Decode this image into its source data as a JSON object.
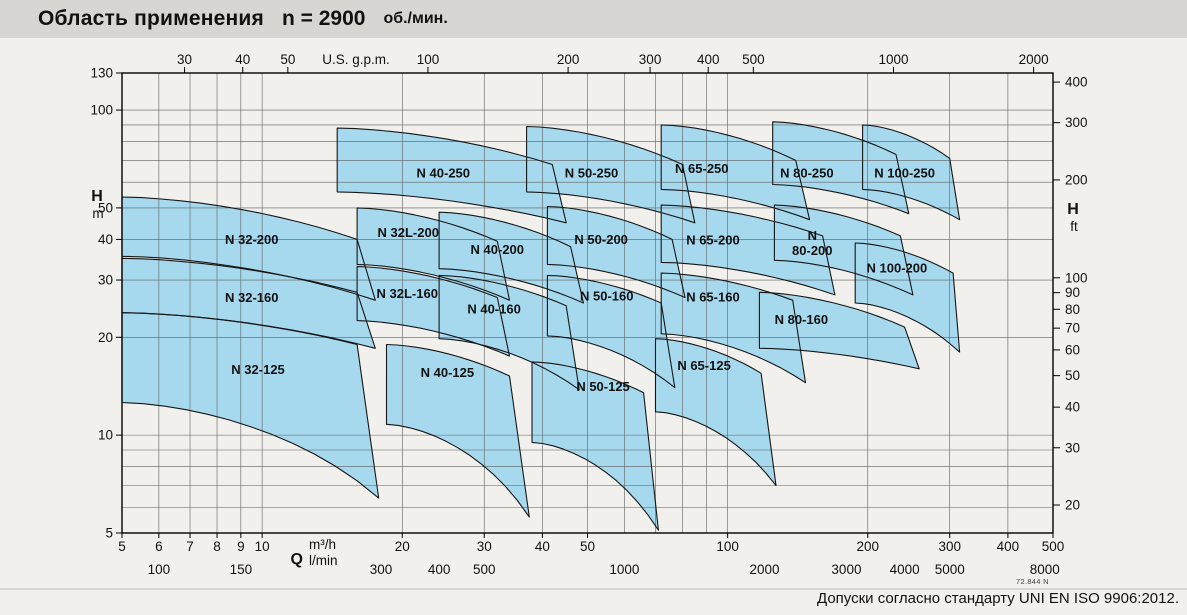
{
  "title": {
    "prefix": "Область применения",
    "n_label": "n = 2900",
    "unit": "об./мин."
  },
  "footer": {
    "note": "Допуски согласно стандарту UNI EN ISO 9906:2012.",
    "doc_code": "72.844 N"
  },
  "chart_data": {
    "type": "area",
    "scale": "log-log",
    "title": "Область применения n = 2900 об./мин.",
    "colors": {
      "region_fill": "#a6d9ee",
      "region_stroke": "#161616",
      "grid": "#5f5f5f",
      "border": "#000000"
    },
    "axes": {
      "top": {
        "title": "U.S. g.p.m.",
        "ticks": [
          30,
          40,
          50,
          100,
          200,
          300,
          400,
          500,
          1000,
          2000
        ]
      },
      "left": {
        "title": "H",
        "unit": "m",
        "range": [
          5,
          130
        ],
        "ticks": [
          130,
          100,
          50,
          40,
          30,
          20,
          10,
          5
        ]
      },
      "right": {
        "title": "H",
        "unit": "ft",
        "ticks": [
          400,
          300,
          200,
          100,
          90,
          80,
          70,
          60,
          50,
          40,
          30,
          20
        ]
      },
      "bottom_m3h": {
        "title": "Q",
        "unit": "m³/h",
        "range": [
          5,
          500
        ],
        "ticks": [
          5,
          6,
          7,
          8,
          9,
          10,
          20,
          30,
          40,
          50,
          100,
          200,
          300,
          400,
          500
        ]
      },
      "bottom_lmin": {
        "unit": "l/min",
        "ticks": [
          100,
          150,
          300,
          400,
          500,
          1000,
          2000,
          3000,
          4000,
          5000,
          8000
        ]
      }
    },
    "grid_x_m3h": [
      6,
      7,
      8,
      9,
      10,
      20,
      30,
      40,
      50,
      60,
      70,
      80,
      90,
      100,
      200,
      300,
      400
    ],
    "grid_y_m": [
      6,
      7,
      8,
      9,
      10,
      20,
      30,
      40,
      50,
      60,
      70,
      80,
      90,
      100
    ],
    "regions": [
      {
        "name": "N 40-250",
        "tl": [
          14.5,
          88
        ],
        "tr": [
          42,
          68
        ],
        "br": [
          45,
          45
        ],
        "bl": [
          14.5,
          56
        ],
        "label_at": [
          24.5,
          64
        ]
      },
      {
        "name": "N 50-250",
        "tl": [
          37,
          89
        ],
        "tr": [
          80,
          68
        ],
        "br": [
          85,
          45
        ],
        "bl": [
          37,
          56
        ],
        "label_at": [
          51,
          64
        ]
      },
      {
        "name": "N 65-250",
        "tl": [
          72,
          90
        ],
        "tr": [
          140,
          70
        ],
        "br": [
          150,
          46
        ],
        "bl": [
          72,
          57
        ],
        "label_at": [
          88,
          66
        ]
      },
      {
        "name": "N 80-250",
        "tl": [
          125,
          92
        ],
        "tr": [
          230,
          73
        ],
        "br": [
          245,
          48
        ],
        "bl": [
          125,
          59
        ],
        "label_at": [
          148,
          64
        ]
      },
      {
        "name": "N 100-250",
        "tl": [
          195,
          90
        ],
        "tr": [
          300,
          71
        ],
        "br": [
          315,
          46
        ],
        "bl": [
          195,
          57
        ],
        "label_at": [
          240,
          64
        ]
      },
      {
        "name": "N 32-200",
        "tl": [
          5,
          54
        ],
        "tr": [
          16,
          40
        ],
        "br": [
          17.5,
          26
        ],
        "bl": [
          5,
          35.5
        ],
        "label_at": [
          9.5,
          40
        ]
      },
      {
        "name": "N 32L-200",
        "tl": [
          16,
          50
        ],
        "tr": [
          32,
          39.5
        ],
        "br": [
          34,
          26
        ],
        "bl": [
          16,
          33.5
        ],
        "label_at": [
          20.6,
          42
        ]
      },
      {
        "name": "N 40-200",
        "tl": [
          24,
          48.5
        ],
        "tr": [
          46,
          38
        ],
        "br": [
          49,
          25.5
        ],
        "bl": [
          24,
          32.5
        ],
        "label_at": [
          32,
          37.3
        ]
      },
      {
        "name": "N 50-200",
        "tl": [
          41,
          50.5
        ],
        "tr": [
          76,
          40
        ],
        "br": [
          81,
          26.5
        ],
        "bl": [
          41,
          33.5
        ],
        "label_at": [
          53.5,
          40
        ]
      },
      {
        "name": "N 65-200",
        "tl": [
          72,
          51
        ],
        "tr": [
          160,
          41
        ],
        "br": [
          170,
          27
        ],
        "bl": [
          72,
          34
        ],
        "label_at": [
          93,
          39.8
        ]
      },
      {
        "name": "N 80-200",
        "tl": [
          126,
          51
        ],
        "tr": [
          235,
          41
        ],
        "br": [
          250,
          27
        ],
        "bl": [
          126,
          34.5
        ],
        "label_at": [
          152,
          39
        ],
        "lines": [
          "N",
          "80-200"
        ]
      },
      {
        "name": "N 100-200",
        "tl": [
          188,
          39
        ],
        "tr": [
          305,
          31.5
        ],
        "br": [
          315,
          18
        ],
        "bl": [
          188,
          25.5
        ],
        "label_at": [
          231,
          32.7
        ]
      },
      {
        "name": "N 32-160",
        "tl": [
          5,
          35
        ],
        "tr": [
          16,
          27.5
        ],
        "br": [
          17.5,
          18.5
        ],
        "bl": [
          5,
          23.8
        ],
        "label_at": [
          9.5,
          26.5
        ]
      },
      {
        "name": "N 32L-160",
        "tl": [
          16,
          33
        ],
        "tr": [
          32,
          26.5
        ],
        "br": [
          34,
          17.5
        ],
        "bl": [
          16,
          22.5
        ],
        "label_at": [
          20.5,
          27.3
        ]
      },
      {
        "name": "N 40-160",
        "tl": [
          24,
          31
        ],
        "tr": [
          45,
          25
        ],
        "br": [
          48,
          13.8
        ],
        "bl": [
          24,
          19.8
        ],
        "label_at": [
          31.5,
          24.4
        ]
      },
      {
        "name": "N 50-160",
        "tl": [
          41,
          31
        ],
        "tr": [
          72,
          25.5
        ],
        "br": [
          77,
          14
        ],
        "bl": [
          41,
          20.2
        ],
        "label_at": [
          55,
          26.8
        ]
      },
      {
        "name": "N 65-160",
        "tl": [
          72,
          31.5
        ],
        "tr": [
          138,
          26
        ],
        "br": [
          147,
          14.5
        ],
        "bl": [
          72,
          20.5
        ],
        "label_at": [
          93,
          26.6
        ]
      },
      {
        "name": "N 80-160",
        "tl": [
          117,
          27.5
        ],
        "tr": [
          240,
          21.5
        ],
        "br": [
          258,
          16
        ],
        "bl": [
          117,
          18.5
        ],
        "label_at": [
          144,
          22.7
        ]
      },
      {
        "name": "N 32-125",
        "tl": [
          5,
          23.8
        ],
        "tr": [
          16,
          19
        ],
        "br": [
          17.8,
          6.4
        ],
        "bl": [
          5,
          12.6
        ],
        "label_at": [
          9.8,
          15.9
        ]
      },
      {
        "name": "N 40-125",
        "tl": [
          18.5,
          19
        ],
        "tr": [
          34,
          15.2
        ],
        "br": [
          37.5,
          5.6
        ],
        "bl": [
          18.5,
          10.8
        ],
        "label_at": [
          25,
          15.6
        ]
      },
      {
        "name": "N 50-125",
        "tl": [
          38,
          16.8
        ],
        "tr": [
          66,
          13.5
        ],
        "br": [
          71,
          5.1
        ],
        "bl": [
          38,
          9.5
        ],
        "label_at": [
          54,
          14.1
        ]
      },
      {
        "name": "N 65-125",
        "tl": [
          70,
          19.8
        ],
        "tr": [
          118,
          15.5
        ],
        "br": [
          127,
          7
        ],
        "bl": [
          70,
          11.8
        ],
        "label_at": [
          89,
          16.4
        ]
      }
    ]
  }
}
